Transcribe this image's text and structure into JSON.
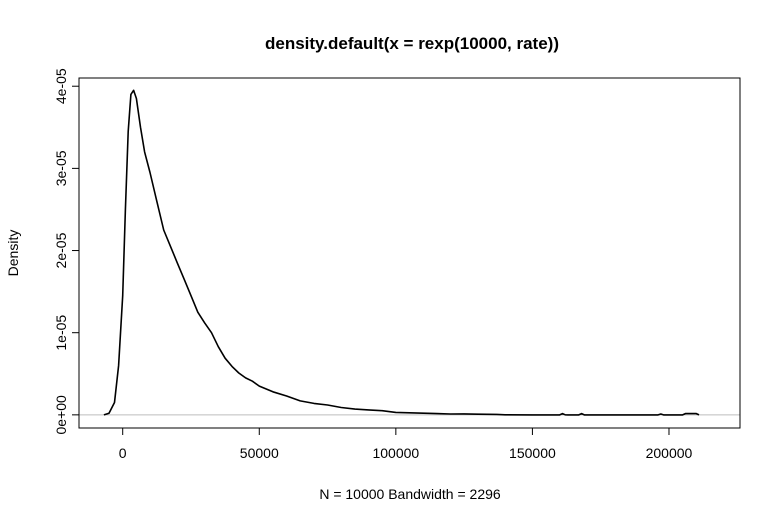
{
  "chart_data": {
    "type": "line",
    "title": "density.default(x = rexp(10000, rate))",
    "xlabel": "N = 10000   Bandwidth = 2296",
    "ylabel": "Density",
    "xlim": [
      -16000,
      226000
    ],
    "ylim": [
      -1.6e-06,
      4.1e-05
    ],
    "x_ticks": [
      0,
      50000,
      100000,
      150000,
      200000
    ],
    "x_tick_labels": [
      "0",
      "50000",
      "100000",
      "150000",
      "200000"
    ],
    "y_ticks": [
      0,
      1e-05,
      2e-05,
      3e-05,
      4e-05
    ],
    "y_tick_labels": [
      "0e+00",
      "1e-05",
      "2e-05",
      "3e-05",
      "4e-05"
    ],
    "grid": false,
    "baseline": {
      "y": 0,
      "color": "#bebebe"
    },
    "line_color": "#000000",
    "series": [
      {
        "x": [
          -6900,
          -5000,
          -3000,
          -1500,
          0,
          1000,
          2000,
          3000,
          4000,
          5000,
          6500,
          8000,
          10000,
          12500,
          15000,
          17500,
          20000,
          22500,
          25000,
          27500,
          30000,
          32500,
          35000,
          37500,
          40000,
          42500,
          45000,
          47500,
          50000,
          55000,
          60000,
          65000,
          70000,
          75000,
          80000,
          85000,
          90000,
          95000,
          100000,
          105000,
          110000,
          115000,
          120000,
          125000,
          130000,
          137000,
          140000,
          150000,
          160000,
          161000,
          162000,
          163000,
          167000,
          168000,
          169000,
          175000,
          196000,
          197000,
          198000,
          205000,
          206000,
          210000,
          211000
        ],
        "y": [
          0,
          2e-07,
          1.5e-06,
          6e-06,
          1.45e-05,
          2.5e-05,
          3.45e-05,
          3.9e-05,
          3.95e-05,
          3.85e-05,
          3.5e-05,
          3.2e-05,
          2.95e-05,
          2.6e-05,
          2.25e-05,
          2.05e-05,
          1.85e-05,
          1.65e-05,
          1.45e-05,
          1.25e-05,
          1.12e-05,
          1e-05,
          8.3e-06,
          6.9e-06,
          5.9e-06,
          5.1e-06,
          4.5e-06,
          4.1e-06,
          3.5e-06,
          2.8e-06,
          2.3e-06,
          1.7e-06,
          1.4e-06,
          1.2e-06,
          9e-07,
          7e-07,
          6e-07,
          5e-07,
          3e-07,
          2.5e-07,
          2e-07,
          1.5e-07,
          1e-07,
          1.2e-07,
          8e-08,
          5e-08,
          1e-08,
          0,
          0,
          1.5e-07,
          1e-08,
          0,
          0,
          1.5e-07,
          0,
          0,
          0,
          1e-07,
          0,
          0,
          1.5e-07,
          1.5e-07,
          0
        ]
      }
    ]
  }
}
